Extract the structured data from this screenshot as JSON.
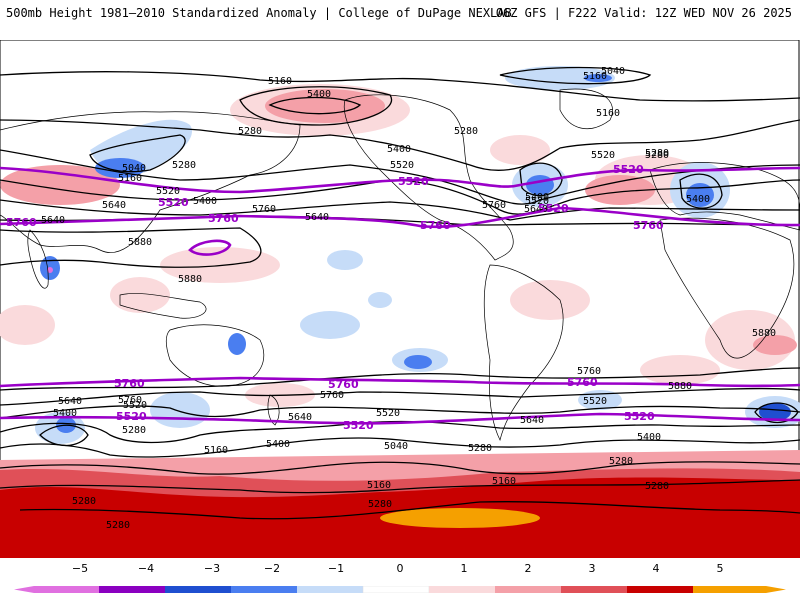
{
  "header": {
    "left_title": "500mb Height 1981–2010 Standardized Anomaly | College of DuPage NEXLAB",
    "right_title": "06Z GFS | F222 Valid: 12Z WED NOV 26 2025"
  },
  "colors": {
    "neg5": "#e070e0",
    "neg4": "#8a00c0",
    "neg3": "#1f4fd0",
    "neg2": "#4a7ef0",
    "neg1": "#c6dcf8",
    "neutral": "#ffffff",
    "pos1": "#fadadc",
    "pos2": "#f4a0a8",
    "pos3": "#e05058",
    "pos4": "#c80000",
    "pos5": "#f5a000",
    "contour": "#000000",
    "highlight": "#9a00c8"
  },
  "colorbar": {
    "ticks": [
      "−5",
      "−4",
      "−3",
      "−2",
      "−1",
      "0",
      "1",
      "2",
      "3",
      "4",
      "5"
    ]
  },
  "contour_labels": {
    "northern": [
      "5160",
      "5400",
      "5280",
      "5040",
      "5160",
      "5040",
      "5160",
      "5280",
      "5520",
      "5640",
      "5400",
      "5520",
      "5640",
      "5760",
      "5880",
      "5880",
      "5280",
      "5400",
      "5520",
      "5640",
      "5760",
      "5400",
      "5280",
      "5160",
      "5520",
      "5280",
      "5400",
      "5640"
    ],
    "highlight_north": [
      "5520",
      "5520",
      "5760",
      "5760",
      "5520",
      "5520",
      "5760",
      "5760"
    ],
    "southern": [
      "5880",
      "5880",
      "5760",
      "5640",
      "5400",
      "5520",
      "5280",
      "5760",
      "5640",
      "5400",
      "5160",
      "5520",
      "5040",
      "5280",
      "5160",
      "5280",
      "5280",
      "5280",
      "5400",
      "5520",
      "5640",
      "5760",
      "5280",
      "5160",
      "5280"
    ],
    "highlight_south": [
      "5760",
      "5760",
      "5760",
      "5520",
      "5520",
      "5520"
    ]
  }
}
